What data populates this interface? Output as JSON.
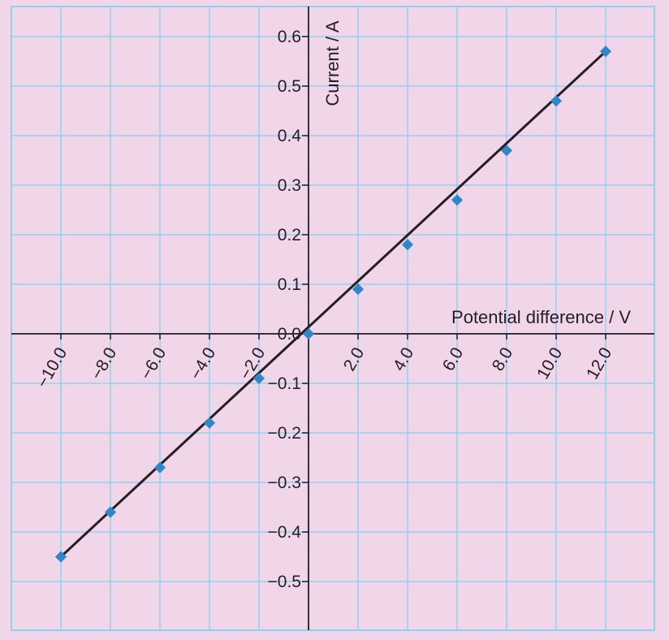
{
  "chart_data": {
    "type": "scatter",
    "xlabel": "Potential difference / V",
    "ylabel": "Current / A",
    "xlim": [
      -10,
      12
    ],
    "ylim": [
      -0.5,
      0.6
    ],
    "x_ticks": [
      "−10.0",
      "−8.0",
      "−6.0",
      "−4.0",
      "−2.0",
      "2.0",
      "4.0",
      "6.0",
      "8.0",
      "10.0",
      "12.0"
    ],
    "y_ticks": [
      "0.6",
      "0.5",
      "0.4",
      "0.3",
      "0.2",
      "0.1",
      "0.0",
      "−0.1",
      "−0.2",
      "−0.3",
      "−0.4",
      "−0.5"
    ],
    "grid": true,
    "fit_line": true,
    "series": [
      {
        "x": [
          -10,
          -8,
          -6,
          -4,
          -2,
          0,
          2,
          4,
          6,
          8,
          10,
          12
        ],
        "y": [
          -0.45,
          -0.36,
          -0.27,
          -0.18,
          -0.09,
          0.0,
          0.09,
          0.18,
          0.27,
          0.37,
          0.47,
          0.57
        ]
      }
    ]
  },
  "colors": {
    "background": "#f1d6ea",
    "grid": "#8fd0ef",
    "axis": "#231f20",
    "line": "#231f20",
    "marker": "#2f86c8"
  }
}
